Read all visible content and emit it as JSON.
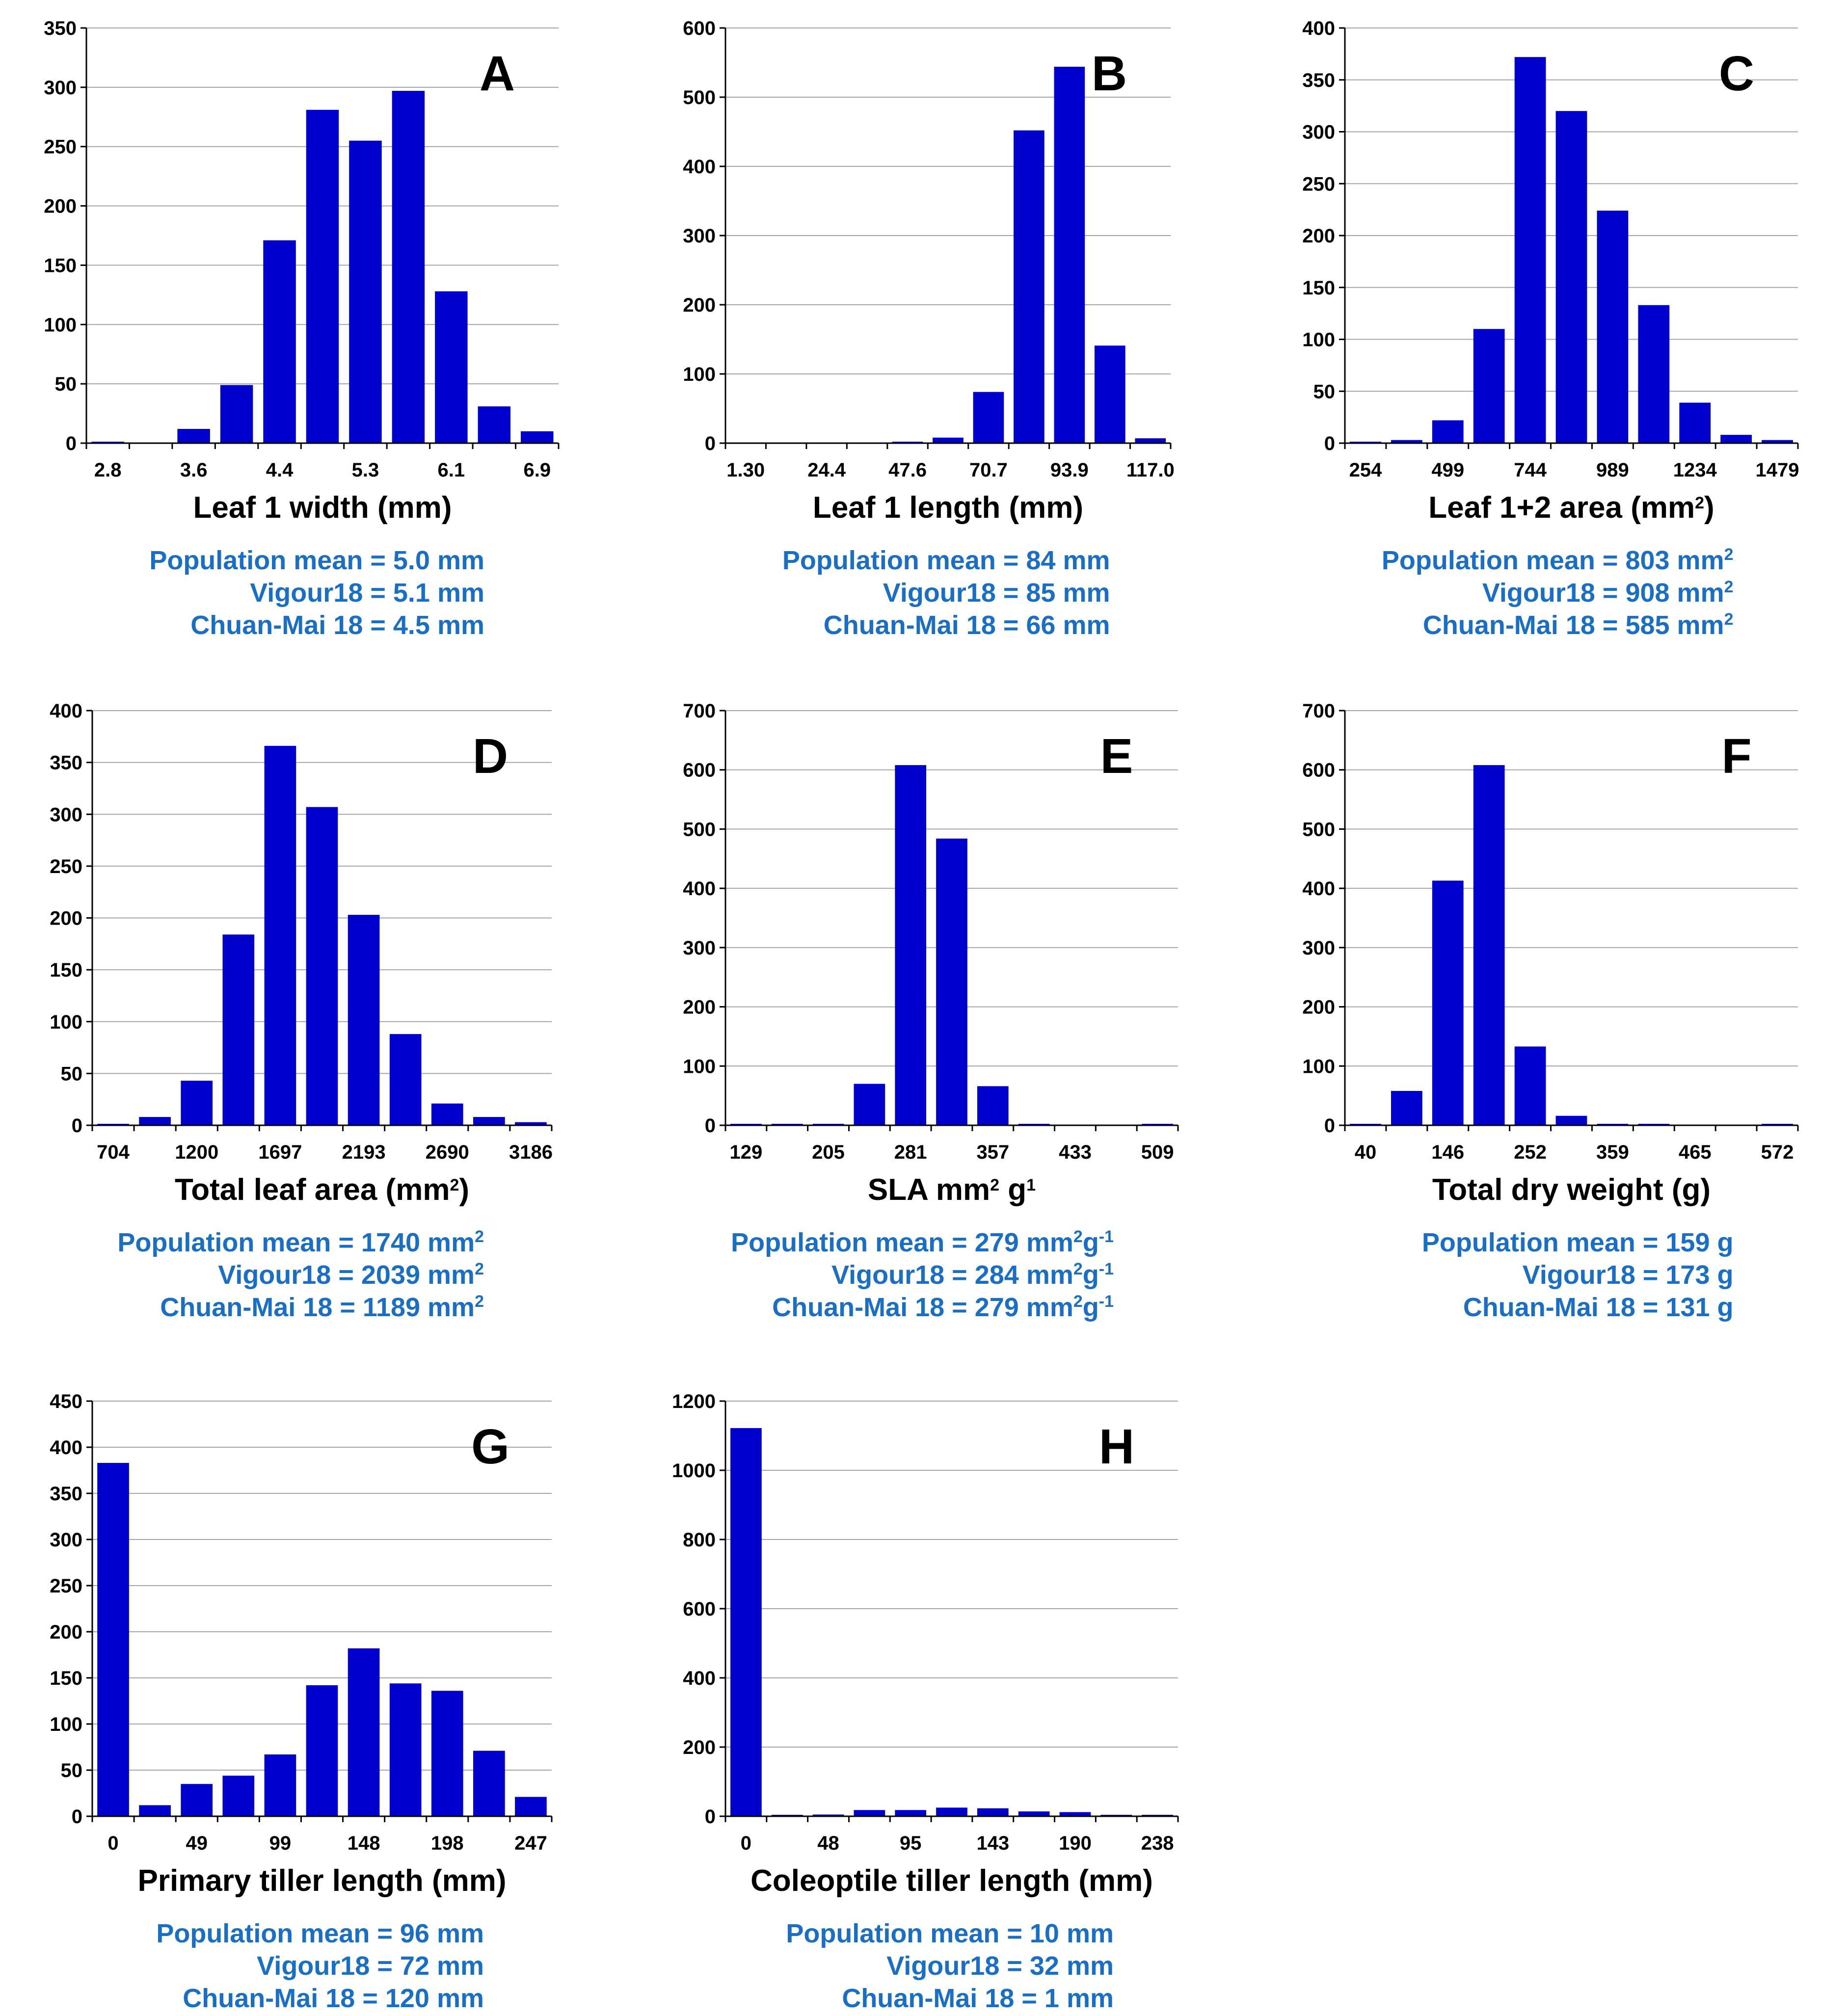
{
  "colors": {
    "bar": "#0000cc",
    "stat_text": "#1a6fc4",
    "grid": "#a6a6a6",
    "axis": "#000000"
  },
  "chart_data": [
    {
      "panel": "A",
      "type": "bar",
      "xlabel_parts": [
        {
          "t": "Leaf 1 width (mm)"
        }
      ],
      "categories": [
        "2.8",
        "3.2",
        "3.6",
        "4.0",
        "4.4",
        "4.9",
        "5.3",
        "5.7",
        "6.1",
        "6.5",
        "6.9"
      ],
      "tick_labels": [
        "2.8",
        "",
        "3.6",
        "",
        "4.4",
        "",
        "5.3",
        "",
        "6.1",
        "",
        "6.9"
      ],
      "values": [
        1,
        0,
        12,
        49,
        171,
        281,
        255,
        297,
        128,
        31,
        10
      ],
      "ylim": [
        0,
        350
      ],
      "yticks": [
        0,
        50,
        100,
        150,
        200,
        250,
        300,
        350
      ],
      "stats": [
        [
          {
            "t": "Population mean = 5.0 mm"
          }
        ],
        [
          {
            "t": "Vigour18 = 5.1 mm"
          }
        ],
        [
          {
            "t": "Chuan-Mai 18 = 4.5 mm"
          }
        ]
      ]
    },
    {
      "panel": "B",
      "type": "bar",
      "xlabel_parts": [
        {
          "t": "Leaf 1 length (mm)"
        }
      ],
      "categories": [
        "1.30",
        "13",
        "24.4",
        "36",
        "47.6",
        "59",
        "70.7",
        "82",
        "93.9",
        "105",
        "117.0"
      ],
      "tick_labels": [
        "1.30",
        "",
        "24.4",
        "",
        "47.6",
        "",
        "70.7",
        "",
        "93.9",
        "",
        "117.0"
      ],
      "values": [
        0,
        0,
        0,
        0,
        2,
        8,
        74,
        452,
        544,
        141,
        7
      ],
      "ylim": [
        0,
        600
      ],
      "yticks": [
        0,
        100,
        200,
        300,
        400,
        500,
        600
      ],
      "stats": [
        [
          {
            "t": "Population mean = 84 mm"
          }
        ],
        [
          {
            "t": "Vigour18 = 85 mm"
          }
        ],
        [
          {
            "t": "Chuan-Mai 18 = 66 mm"
          }
        ]
      ]
    },
    {
      "panel": "C",
      "type": "bar",
      "xlabel_parts": [
        {
          "t": "Leaf 1+2 area (mm"
        },
        {
          "t": "2",
          "sup": true
        },
        {
          "t": ")"
        }
      ],
      "categories": [
        "254",
        "376",
        "499",
        "621",
        "744",
        "866",
        "989",
        "1111",
        "1234",
        "1356",
        "1479"
      ],
      "tick_labels": [
        "254",
        "",
        "499",
        "",
        "744",
        "",
        "989",
        "",
        "1234",
        "",
        "1479"
      ],
      "values": [
        1,
        3,
        22,
        110,
        372,
        320,
        224,
        133,
        39,
        8,
        3
      ],
      "ylim": [
        0,
        400
      ],
      "yticks": [
        0,
        50,
        100,
        150,
        200,
        250,
        300,
        350,
        400
      ],
      "stats": [
        [
          {
            "t": "Population mean = 803 mm"
          },
          {
            "t": "2",
            "sup": true
          }
        ],
        [
          {
            "t": "Vigour18 = 908 mm"
          },
          {
            "t": "2",
            "sup": true
          }
        ],
        [
          {
            "t": "Chuan-Mai 18 = 585 mm"
          },
          {
            "t": "2",
            "sup": true
          }
        ]
      ]
    },
    {
      "panel": "D",
      "type": "bar",
      "xlabel_parts": [
        {
          "t": "Total leaf area (mm"
        },
        {
          "t": "2",
          "sup": true
        },
        {
          "t": ")"
        }
      ],
      "categories": [
        "704",
        "952",
        "1200",
        "1449",
        "1697",
        "1945",
        "2193",
        "2442",
        "2690",
        "2938",
        "3186"
      ],
      "tick_labels": [
        "704",
        "",
        "1200",
        "",
        "1697",
        "",
        "2193",
        "",
        "2690",
        "",
        "3186"
      ],
      "values": [
        1,
        8,
        43,
        184,
        366,
        307,
        203,
        88,
        21,
        8,
        3
      ],
      "ylim": [
        0,
        400
      ],
      "yticks": [
        0,
        50,
        100,
        150,
        200,
        250,
        300,
        350,
        400
      ],
      "stats": [
        [
          {
            "t": "Population mean = 1740 mm"
          },
          {
            "t": "2",
            "sup": true
          }
        ],
        [
          {
            "t": "Vigour18 = 2039 mm"
          },
          {
            "t": "2",
            "sup": true
          }
        ],
        [
          {
            "t": "Chuan-Mai 18 = 1189 mm"
          },
          {
            "t": "2",
            "sup": true
          }
        ]
      ]
    },
    {
      "panel": "E",
      "type": "bar",
      "xlabel_parts": [
        {
          "t": "SLA mm"
        },
        {
          "t": "2",
          "sup": true
        },
        {
          "t": " g"
        },
        {
          "t": "1",
          "sup": true
        }
      ],
      "categories": [
        "129",
        "167",
        "205",
        "243",
        "281",
        "319",
        "357",
        "395",
        "433",
        "471",
        "509"
      ],
      "tick_labels": [
        "129",
        "",
        "205",
        "",
        "281",
        "",
        "357",
        "",
        "433",
        "",
        "509"
      ],
      "values": [
        1,
        1,
        2,
        70,
        608,
        484,
        66,
        2,
        0,
        0,
        1
      ],
      "ylim": [
        0,
        700
      ],
      "yticks": [
        0,
        100,
        200,
        300,
        400,
        500,
        600,
        700
      ],
      "stats": [
        [
          {
            "t": "Population   mean = 279 mm"
          },
          {
            "t": "2",
            "sup": true
          },
          {
            "t": "g"
          },
          {
            "t": "-1",
            "sup": true
          }
        ],
        [
          {
            "t": "Vigour18 = 284 mm"
          },
          {
            "t": "2",
            "sup": true
          },
          {
            "t": "g"
          },
          {
            "t": "-1",
            "sup": true
          }
        ],
        [
          {
            "t": "Chuan-Mai 18 = 279 mm"
          },
          {
            "t": "2",
            "sup": true
          },
          {
            "t": "g"
          },
          {
            "t": "-1",
            "sup": true
          }
        ]
      ]
    },
    {
      "panel": "F",
      "type": "bar",
      "xlabel_parts": [
        {
          "t": "Total dry weight (g)"
        }
      ],
      "categories": [
        "40",
        "93",
        "146",
        "199",
        "252",
        "306",
        "359",
        "412",
        "465",
        "518",
        "572"
      ],
      "tick_labels": [
        "40",
        "",
        "146",
        "",
        "252",
        "",
        "359",
        "",
        "465",
        "",
        "572"
      ],
      "values": [
        1,
        58,
        413,
        608,
        133,
        16,
        1,
        2,
        0,
        0,
        1
      ],
      "ylim": [
        0,
        700
      ],
      "yticks": [
        0,
        100,
        200,
        300,
        400,
        500,
        600,
        700
      ],
      "stats": [
        [
          {
            "t": "Population mean = 159 g"
          }
        ],
        [
          {
            "t": "Vigour18 = 173 g"
          }
        ],
        [
          {
            "t": "Chuan-Mai 18 = 131 g"
          }
        ]
      ]
    },
    {
      "panel": "G",
      "type": "bar",
      "xlabel_parts": [
        {
          "t": "Primary tiller length (mm)"
        }
      ],
      "categories": [
        "0",
        "25",
        "49",
        "74",
        "99",
        "124",
        "148",
        "173",
        "198",
        "222",
        "247"
      ],
      "tick_labels": [
        "0",
        "",
        "49",
        "",
        "99",
        "",
        "148",
        "",
        "198",
        "",
        "247"
      ],
      "values": [
        383,
        12,
        35,
        44,
        67,
        142,
        182,
        144,
        136,
        71,
        21
      ],
      "ylim": [
        0,
        450
      ],
      "yticks": [
        0,
        50,
        100,
        150,
        200,
        250,
        300,
        350,
        400,
        450
      ],
      "stats": [
        [
          {
            "t": "Population mean = 96 mm"
          }
        ],
        [
          {
            "t": "Vigour18 = 72 mm"
          }
        ],
        [
          {
            "t": "Chuan-Mai 18 = 120 mm"
          }
        ]
      ]
    },
    {
      "panel": "H",
      "type": "bar",
      "xlabel_parts": [
        {
          "t": "Coleoptile tiller length (mm)"
        }
      ],
      "categories": [
        "0",
        "24",
        "48",
        "71",
        "95",
        "119",
        "143",
        "167",
        "190",
        "214",
        "238"
      ],
      "tick_labels": [
        "0",
        "",
        "48",
        "",
        "95",
        "",
        "143",
        "",
        "190",
        "",
        "238"
      ],
      "values": [
        1122,
        3,
        5,
        18,
        18,
        25,
        23,
        14,
        12,
        1,
        2
      ],
      "ylim": [
        0,
        1200
      ],
      "yticks": [
        0,
        200,
        400,
        600,
        800,
        1000,
        1200
      ],
      "stats": [
        [
          {
            "t": "Population mean = 10 mm"
          }
        ],
        [
          {
            "t": "Vigour18 = 32 mm"
          }
        ],
        [
          {
            "t": "Chuan-Mai 18 = 1 mm"
          }
        ]
      ]
    }
  ]
}
